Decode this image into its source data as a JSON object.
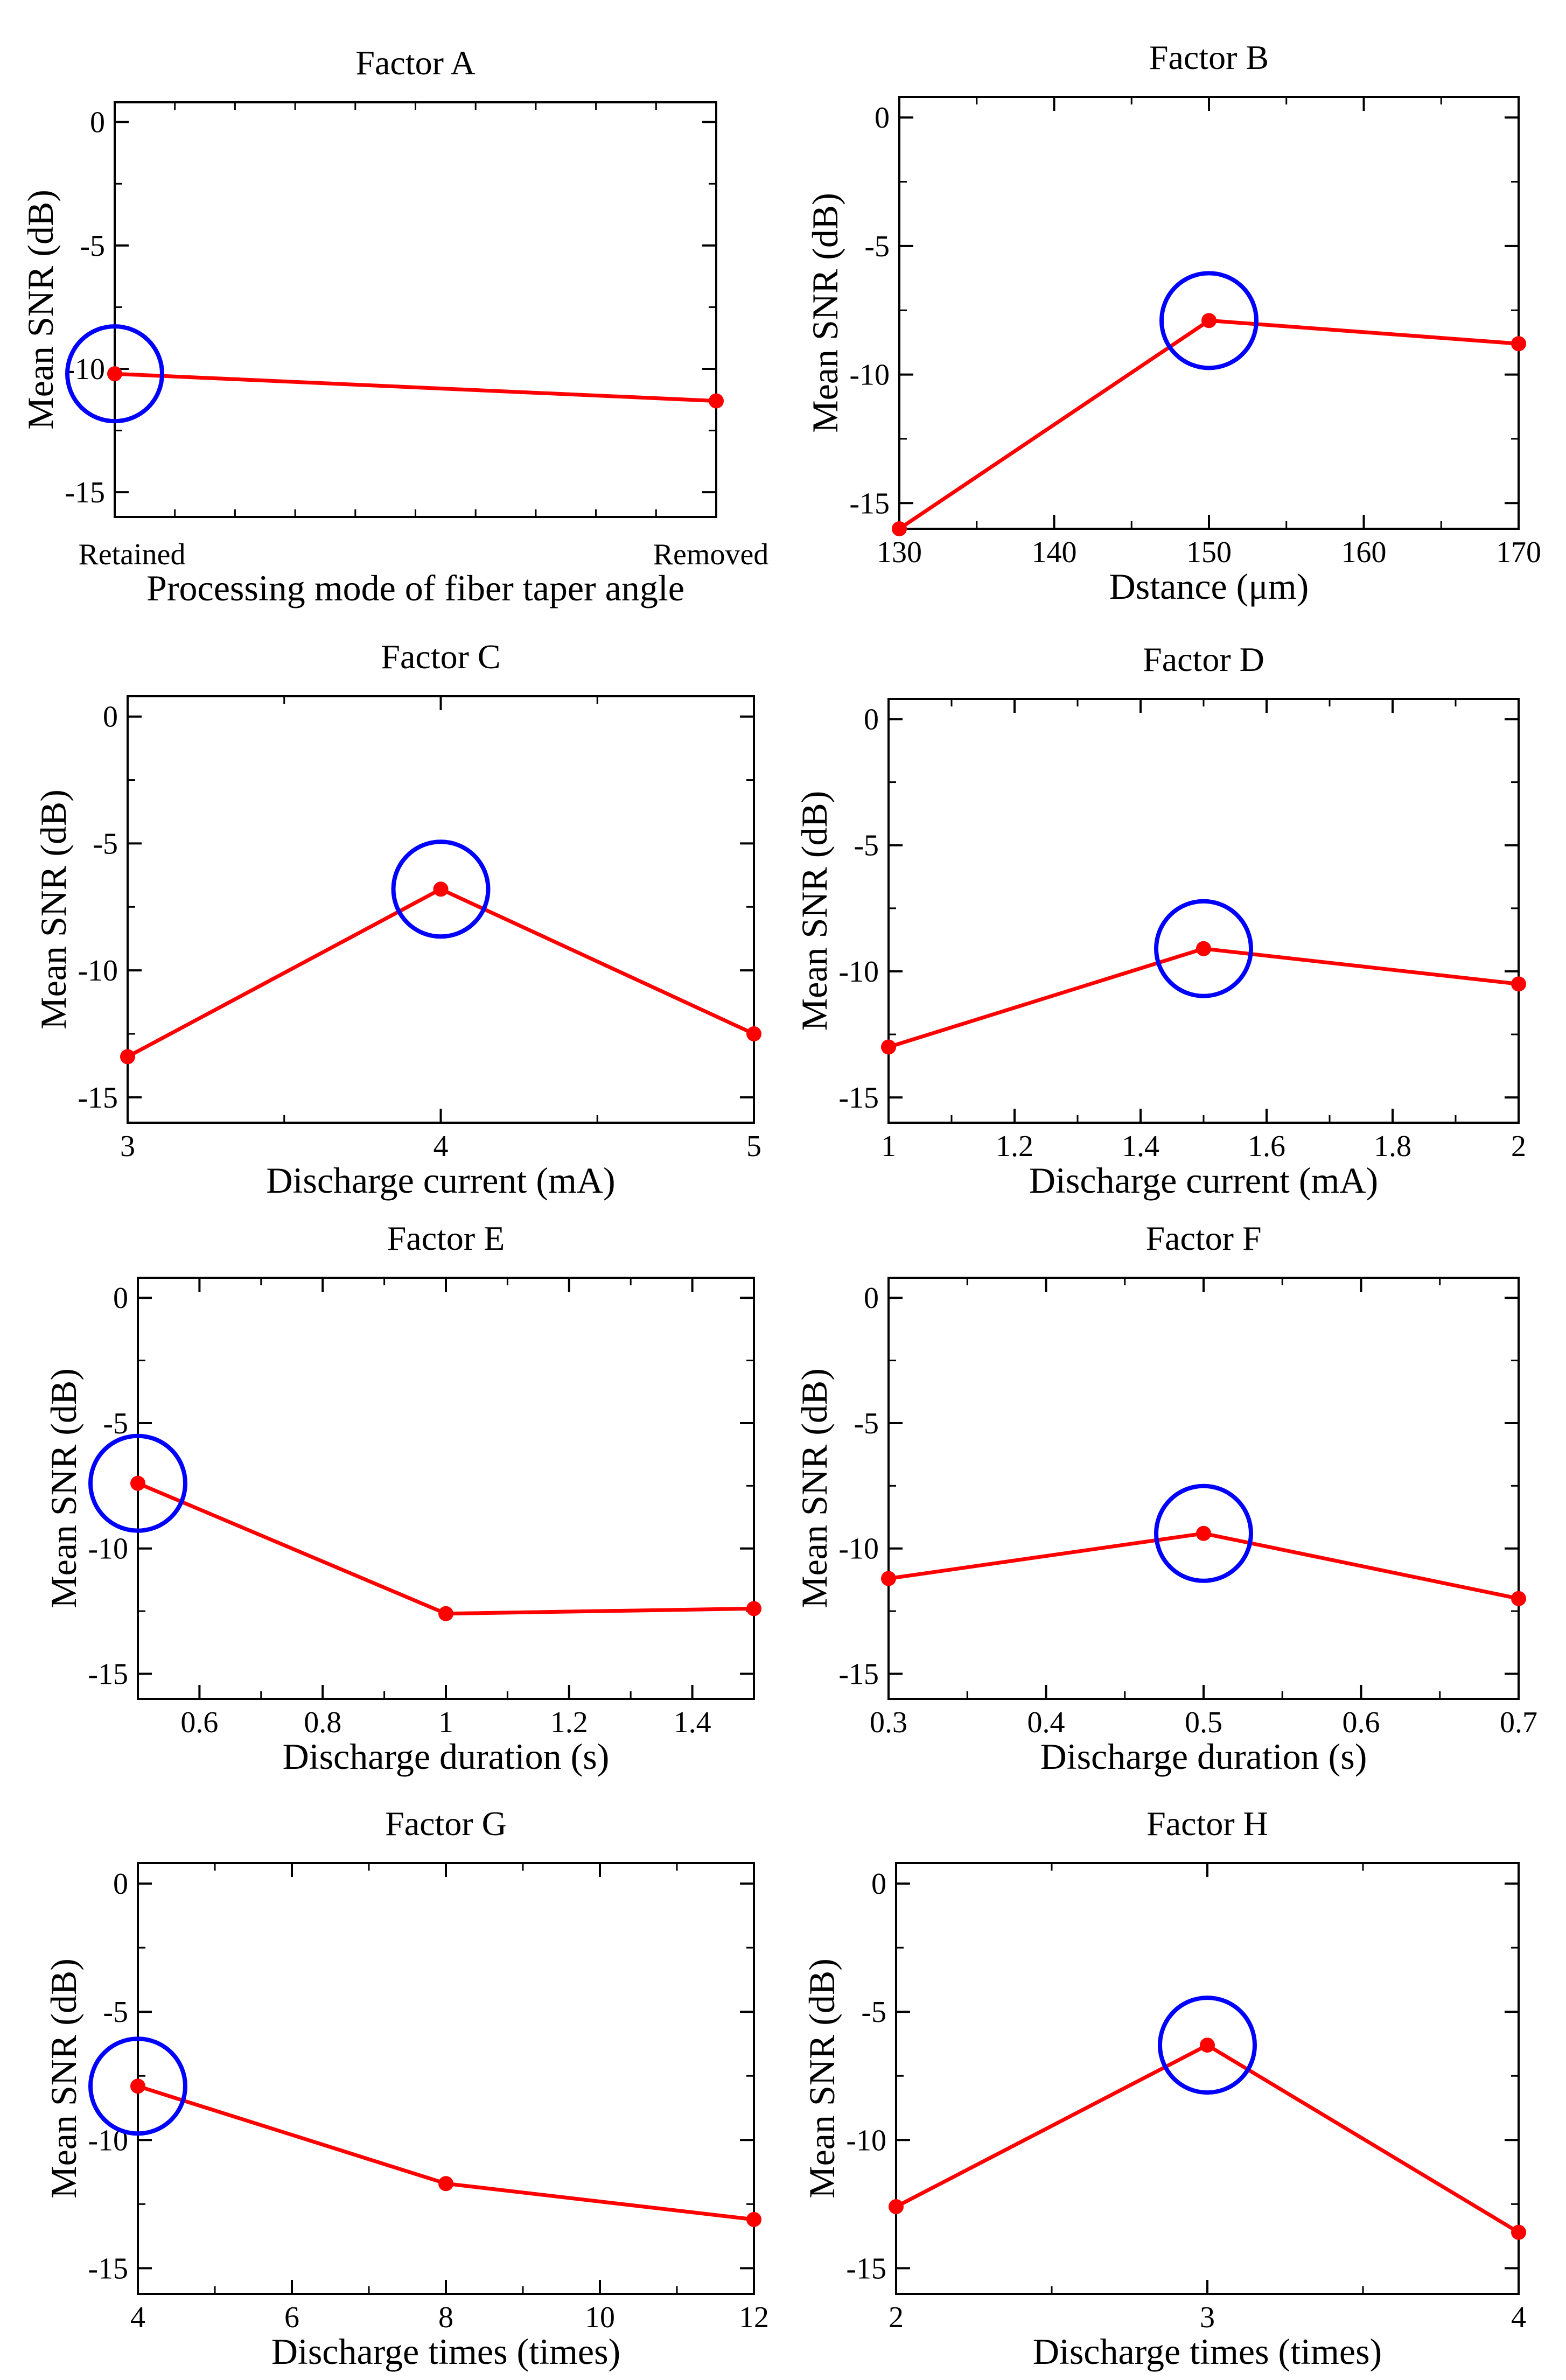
{
  "chart_data": [
    {
      "type": "line",
      "title": "Factor A",
      "xlabel": "Processing mode of fiber taper angle",
      "ylabel": "Mean SNR (dB)",
      "x_scale": "categorical",
      "categories": [
        "Retained",
        "Removed"
      ],
      "x": [
        0,
        1
      ],
      "y": [
        -10.2,
        -11.3
      ],
      "xlim": [
        0,
        1
      ],
      "ylim": [
        -16,
        0.8
      ],
      "x_ticks": [],
      "y_ticks": [
        0,
        -5,
        -10,
        -15
      ],
      "y_tick_labels": [
        "0",
        "-5",
        "-10",
        "-15"
      ],
      "highlight_index": 0,
      "line_color": "#ff0000",
      "marker_color": "#ff0000",
      "highlight_color": "#0000ff",
      "grid": false
    },
    {
      "type": "line",
      "title": "Factor B",
      "xlabel": "Dstance (μm)",
      "ylabel": "Mean SNR (dB)",
      "x": [
        130,
        150,
        170
      ],
      "y": [
        -16,
        -7.9,
        -8.8
      ],
      "xlim": [
        130,
        170
      ],
      "ylim": [
        -16,
        0.8
      ],
      "x_ticks": [
        130,
        140,
        150,
        160,
        170
      ],
      "x_tick_labels": [
        "130",
        "140",
        "150",
        "160",
        "170"
      ],
      "y_ticks": [
        0,
        -5,
        -10,
        -15
      ],
      "y_tick_labels": [
        "0",
        "-5",
        "-10",
        "-15"
      ],
      "highlight_index": 1,
      "line_color": "#ff0000",
      "marker_color": "#ff0000",
      "highlight_color": "#0000ff",
      "grid": false
    },
    {
      "type": "line",
      "title": "Factor C",
      "xlabel": "Discharge current (mA)",
      "ylabel": "Mean SNR (dB)",
      "x": [
        3,
        4,
        5
      ],
      "y": [
        -13.4,
        -6.8,
        -12.5
      ],
      "xlim": [
        3,
        5
      ],
      "ylim": [
        -16,
        0.8
      ],
      "x_ticks": [
        3,
        4,
        5
      ],
      "x_tick_labels": [
        "3",
        "4",
        "5"
      ],
      "y_ticks": [
        0,
        -5,
        -10,
        -15
      ],
      "y_tick_labels": [
        "0",
        "-5",
        "-10",
        "-15"
      ],
      "highlight_index": 1,
      "line_color": "#ff0000",
      "marker_color": "#ff0000",
      "highlight_color": "#0000ff",
      "grid": false
    },
    {
      "type": "line",
      "title": "Factor D",
      "xlabel": "Discharge current (mA)",
      "ylabel": "Mean SNR (dB)",
      "x": [
        1,
        1.5,
        2
      ],
      "y": [
        -13.0,
        -9.1,
        -10.5
      ],
      "xlim": [
        1,
        2
      ],
      "ylim": [
        -16,
        0.8
      ],
      "x_ticks": [
        1,
        1.2,
        1.4,
        1.6,
        1.8,
        2
      ],
      "x_tick_labels": [
        "1",
        "1.2",
        "1.4",
        "1.6",
        "1.8",
        "2"
      ],
      "y_ticks": [
        0,
        -5,
        -10,
        -15
      ],
      "y_tick_labels": [
        "0",
        "-5",
        "-10",
        "-15"
      ],
      "highlight_index": 1,
      "line_color": "#ff0000",
      "marker_color": "#ff0000",
      "highlight_color": "#0000ff",
      "grid": false
    },
    {
      "type": "line",
      "title": "Factor E",
      "xlabel": "Discharge duration (s)",
      "ylabel": "Mean SNR (dB)",
      "x": [
        0.5,
        1.0,
        1.5
      ],
      "y": [
        -7.4,
        -12.6,
        -12.4
      ],
      "xlim": [
        0.5,
        1.5
      ],
      "ylim": [
        -16,
        0.8
      ],
      "x_ticks": [
        0.6,
        0.8,
        1.0,
        1.2,
        1.4
      ],
      "x_tick_labels": [
        "0.6",
        "0.8",
        "1",
        "1.2",
        "1.4"
      ],
      "y_ticks": [
        0,
        -5,
        -10,
        -15
      ],
      "y_tick_labels": [
        "0",
        "-5",
        "-10",
        "-15"
      ],
      "highlight_index": 0,
      "line_color": "#ff0000",
      "marker_color": "#ff0000",
      "highlight_color": "#0000ff",
      "grid": false
    },
    {
      "type": "line",
      "title": "Factor F",
      "xlabel": "Discharge duration (s)",
      "ylabel": "Mean SNR (dB)",
      "x": [
        0.3,
        0.5,
        0.7
      ],
      "y": [
        -11.2,
        -9.4,
        -12.0
      ],
      "xlim": [
        0.3,
        0.7
      ],
      "ylim": [
        -16,
        0.8
      ],
      "x_ticks": [
        0.3,
        0.4,
        0.5,
        0.6,
        0.7
      ],
      "x_tick_labels": [
        "0.3",
        "0.4",
        "0.5",
        "0.6",
        "0.7"
      ],
      "y_ticks": [
        0,
        -5,
        -10,
        -15
      ],
      "y_tick_labels": [
        "0",
        "-5",
        "-10",
        "-15"
      ],
      "highlight_index": 1,
      "line_color": "#ff0000",
      "marker_color": "#ff0000",
      "highlight_color": "#0000ff",
      "grid": false
    },
    {
      "type": "line",
      "title": "Factor G",
      "xlabel": "Discharge times (times)",
      "ylabel": "Mean SNR (dB)",
      "x": [
        4,
        8,
        12
      ],
      "y": [
        -7.9,
        -11.7,
        -13.1
      ],
      "xlim": [
        4,
        12
      ],
      "ylim": [
        -16,
        0.8
      ],
      "x_ticks": [
        4,
        6,
        8,
        10,
        12
      ],
      "x_tick_labels": [
        "4",
        "6",
        "8",
        "10",
        "12"
      ],
      "y_ticks": [
        0,
        -5,
        -10,
        -15
      ],
      "y_tick_labels": [
        "0",
        "-5",
        "-10",
        "-15"
      ],
      "highlight_index": 0,
      "line_color": "#ff0000",
      "marker_color": "#ff0000",
      "highlight_color": "#0000ff",
      "grid": false
    },
    {
      "type": "line",
      "title": "Factor H",
      "xlabel": "Discharge times (times)",
      "ylabel": "Mean SNR (dB)",
      "x": [
        2,
        3,
        4
      ],
      "y": [
        -12.6,
        -6.3,
        -13.6
      ],
      "xlim": [
        2,
        4
      ],
      "ylim": [
        -16,
        0.8
      ],
      "x_ticks": [
        2,
        3,
        4
      ],
      "x_tick_labels": [
        "2",
        "3",
        "4"
      ],
      "y_ticks": [
        0,
        -5,
        -10,
        -15
      ],
      "y_tick_labels": [
        "0",
        "-5",
        "-10",
        "-15"
      ],
      "highlight_index": 1,
      "line_color": "#ff0000",
      "marker_color": "#ff0000",
      "highlight_color": "#0000ff",
      "grid": false
    }
  ]
}
